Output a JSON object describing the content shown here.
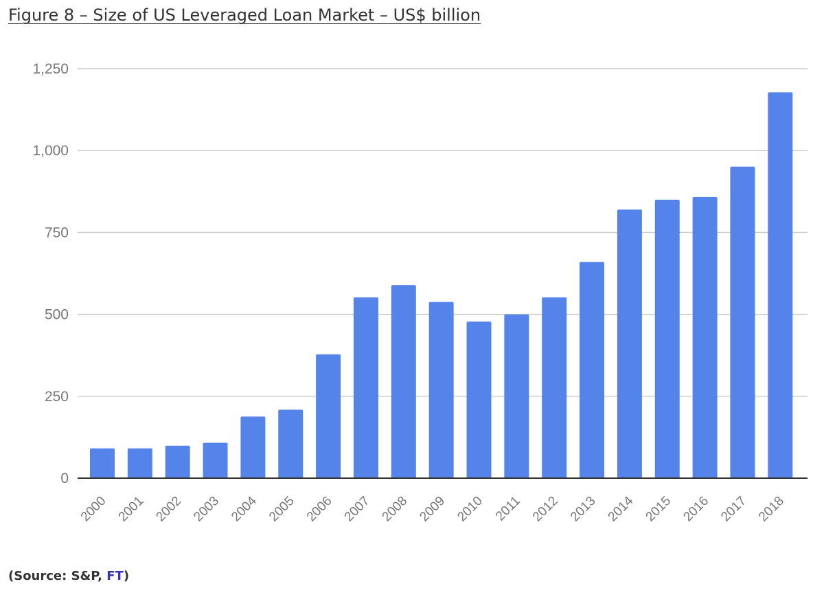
{
  "title": "Figure 8 – Size of US Leveraged Loan Market – US$ billion",
  "source": {
    "prefix": "(Source: S&P, ",
    "link": "FT",
    "suffix": ")",
    "link_color": "#3333bb"
  },
  "colors": {
    "bar": "#5484ea",
    "grid": "#cccccc",
    "axis": "#333333",
    "tick_text": "#777777"
  },
  "chart_data": {
    "type": "bar",
    "title": "Figure 8 – Size of US Leveraged Loan Market – US$ billion",
    "xlabel": "",
    "ylabel": "",
    "ylim": [
      0,
      1250
    ],
    "yticks": [
      0,
      250,
      500,
      750,
      1000,
      1250
    ],
    "ytick_labels": [
      "0",
      "250",
      "500",
      "750",
      "1,000",
      "1,250"
    ],
    "grid": true,
    "legend": "none",
    "categories": [
      "2000",
      "2001",
      "2002",
      "2003",
      "2004",
      "2005",
      "2006",
      "2007",
      "2008",
      "2009",
      "2010",
      "2011",
      "2012",
      "2013",
      "2014",
      "2015",
      "2016",
      "2017",
      "2018"
    ],
    "values": [
      91,
      91,
      99,
      108,
      188,
      209,
      378,
      552,
      589,
      538,
      478,
      500,
      552,
      660,
      820,
      850,
      858,
      951,
      1178
    ]
  }
}
